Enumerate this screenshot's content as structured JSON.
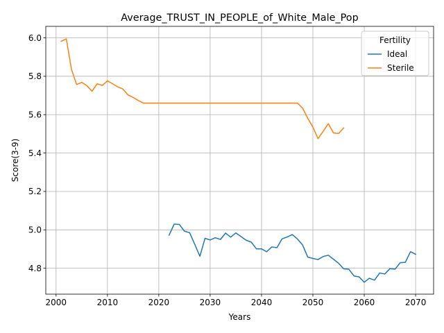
{
  "chart_data": {
    "type": "line",
    "title": "Average_TRUST_IN_PEOPLE_of_White_Male_Pop",
    "xlabel": "Years",
    "ylabel": "Score(3-9)",
    "xlim": [
      1998,
      2073.5
    ],
    "ylim": [
      4.665,
      6.06
    ],
    "xticks": [
      2000,
      2010,
      2020,
      2030,
      2040,
      2050,
      2060,
      2070
    ],
    "yticks": [
      4.8,
      5.0,
      5.2,
      5.4,
      5.6,
      5.8,
      6.0
    ],
    "grid": true,
    "legend": {
      "title": "Fertility",
      "position": "top-right"
    },
    "series": [
      {
        "name": "Ideal",
        "color": "#1f77b4",
        "x": [
          2022,
          2023,
          2024,
          2025,
          2026,
          2027,
          2028,
          2029,
          2030,
          2031,
          2032,
          2033,
          2034,
          2035,
          2036,
          2037,
          2038,
          2039,
          2040,
          2041,
          2042,
          2043,
          2044,
          2045,
          2046,
          2047,
          2048,
          2049,
          2050,
          2051,
          2052,
          2053,
          2054,
          2055,
          2056,
          2057,
          2058,
          2059,
          2060,
          2061,
          2062,
          2063,
          2064,
          2065,
          2066,
          2067,
          2068,
          2069,
          2070
        ],
        "y": [
          4.972,
          5.03,
          5.028,
          4.993,
          4.985,
          4.925,
          4.862,
          4.956,
          4.947,
          4.959,
          4.95,
          4.983,
          4.962,
          4.984,
          4.965,
          4.946,
          4.936,
          4.901,
          4.901,
          4.886,
          4.911,
          4.907,
          4.953,
          4.963,
          4.975,
          4.952,
          4.921,
          4.858,
          4.851,
          4.845,
          4.861,
          4.868,
          4.847,
          4.826,
          4.797,
          4.795,
          4.76,
          4.755,
          4.727,
          4.748,
          4.738,
          4.775,
          4.77,
          4.798,
          4.795,
          4.829,
          4.831,
          4.886,
          4.873
        ]
      },
      {
        "name": "Sterile",
        "color": "#ff7f0e",
        "x": [
          2001,
          2002,
          2003,
          2004,
          2005,
          2006,
          2007,
          2008,
          2009,
          2010,
          2011,
          2012,
          2013,
          2014,
          2015,
          2016,
          2017,
          2018,
          2019,
          2020,
          2021,
          2022,
          2023,
          2024,
          2025,
          2026,
          2027,
          2028,
          2029,
          2030,
          2031,
          2032,
          2033,
          2034,
          2035,
          2036,
          2037,
          2038,
          2039,
          2040,
          2041,
          2042,
          2043,
          2044,
          2045,
          2046,
          2047,
          2048,
          2049,
          2050,
          2051,
          2052,
          2053,
          2054,
          2055,
          2056
        ],
        "y": [
          5.982,
          5.995,
          5.836,
          5.757,
          5.768,
          5.751,
          5.722,
          5.761,
          5.752,
          5.776,
          5.761,
          5.745,
          5.734,
          5.703,
          5.69,
          5.674,
          5.66,
          5.66,
          5.66,
          5.66,
          5.66,
          5.66,
          5.66,
          5.66,
          5.66,
          5.66,
          5.66,
          5.66,
          5.66,
          5.66,
          5.66,
          5.66,
          5.66,
          5.66,
          5.66,
          5.66,
          5.66,
          5.66,
          5.66,
          5.66,
          5.66,
          5.66,
          5.66,
          5.66,
          5.66,
          5.66,
          5.66,
          5.634,
          5.581,
          5.535,
          5.475,
          5.513,
          5.553,
          5.505,
          5.502,
          5.531
        ]
      }
    ]
  }
}
